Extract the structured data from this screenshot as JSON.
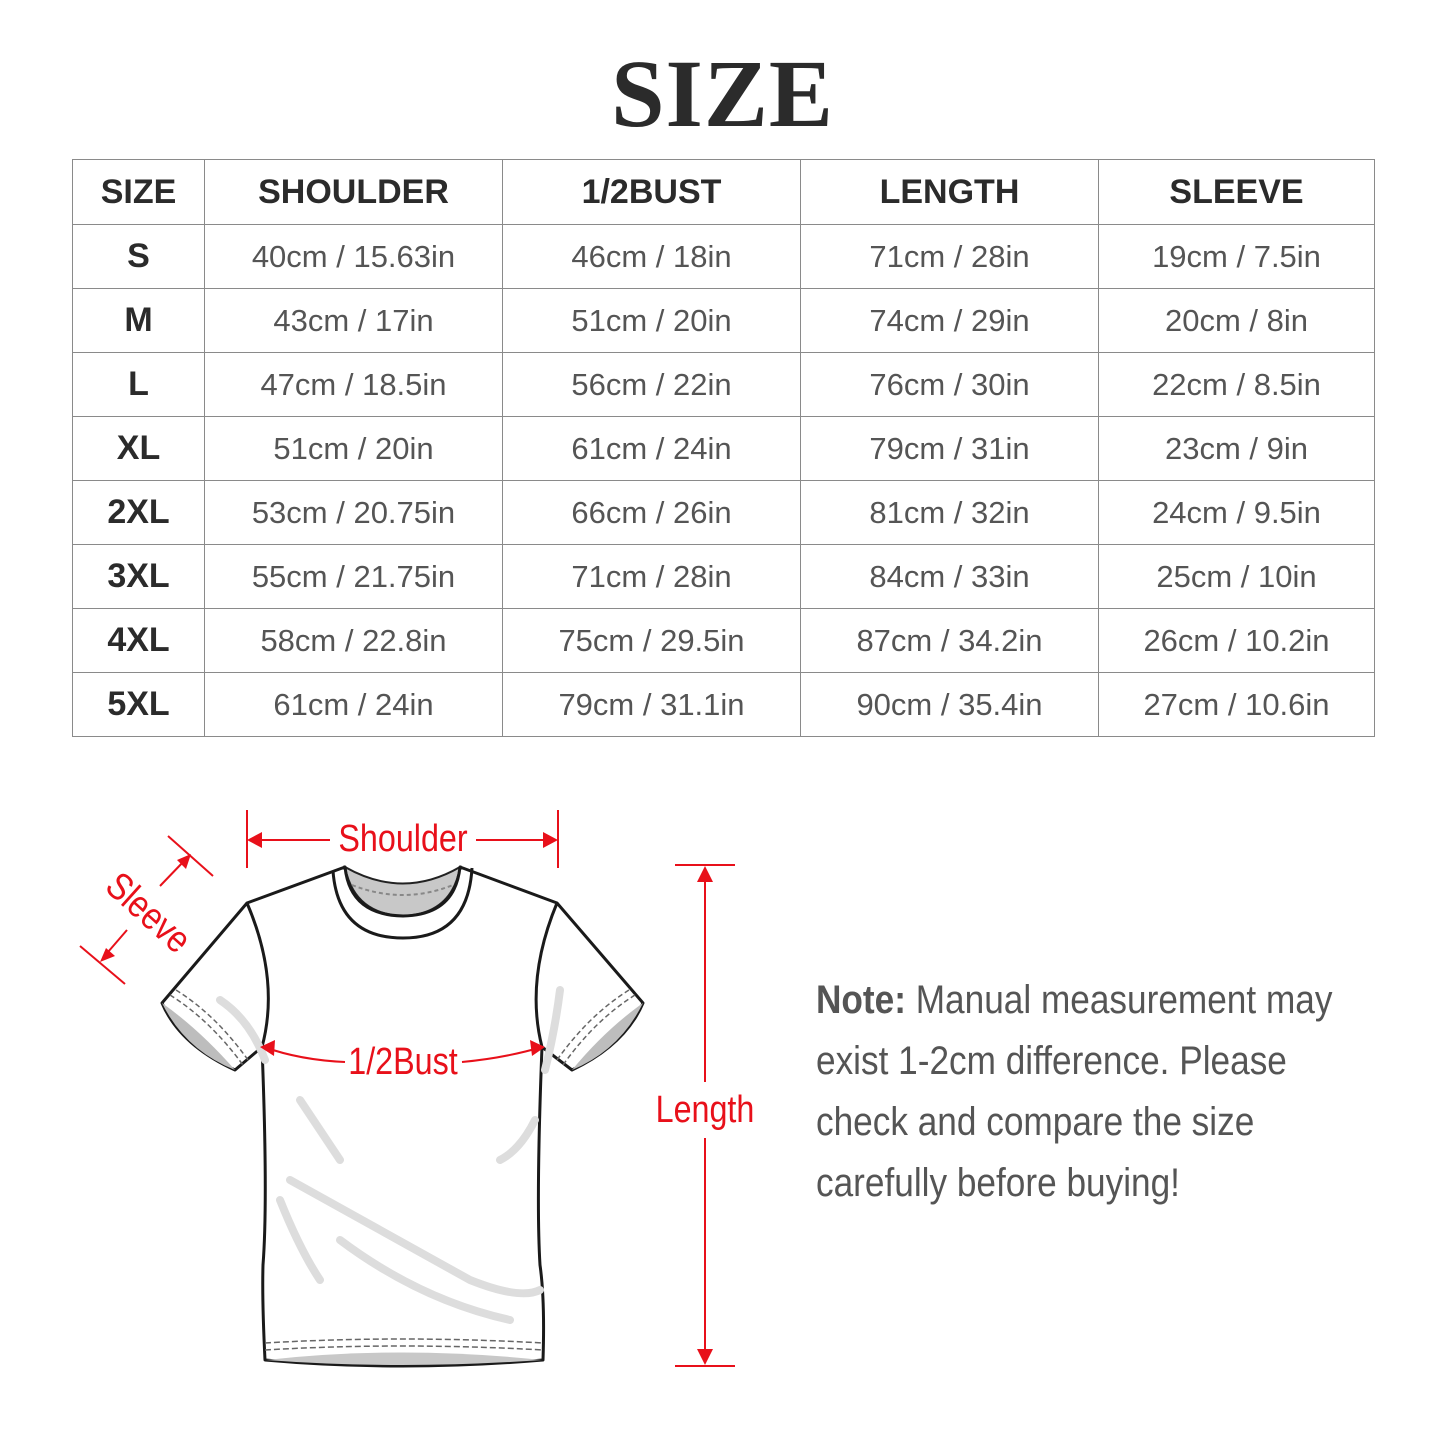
{
  "title": "SIZE",
  "table": {
    "headers": [
      "SIZE",
      "SHOULDER",
      "1/2BUST",
      "LENGTH",
      "SLEEVE"
    ],
    "rows": [
      [
        "S",
        "40cm / 15.63in",
        "46cm / 18in",
        "71cm / 28in",
        "19cm / 7.5in"
      ],
      [
        "M",
        "43cm / 17in",
        "51cm / 20in",
        "74cm / 29in",
        "20cm / 8in"
      ],
      [
        "L",
        "47cm / 18.5in",
        "56cm / 22in",
        "76cm / 30in",
        "22cm / 8.5in"
      ],
      [
        "XL",
        "51cm / 20in",
        "61cm / 24in",
        "79cm / 31in",
        "23cm / 9in"
      ],
      [
        "2XL",
        "53cm / 20.75in",
        "66cm / 26in",
        "81cm / 32in",
        "24cm / 9.5in"
      ],
      [
        "3XL",
        "55cm / 21.75in",
        "71cm / 28in",
        "84cm / 33in",
        "25cm / 10in"
      ],
      [
        "4XL",
        "58cm / 22.8in",
        "75cm / 29.5in",
        "87cm / 34.2in",
        "26cm / 10.2in"
      ],
      [
        "5XL",
        "61cm / 24in",
        "79cm / 31.1in",
        "90cm / 35.4in",
        "27cm / 10.6in"
      ]
    ]
  },
  "diagram": {
    "shoulder_label": "Shoulder",
    "sleeve_label": "Sleeve",
    "bust_label": "1/2Bust",
    "length_label": "Length",
    "accent_color": "#e8101a"
  },
  "note": {
    "label": "Note:",
    "lines": [
      " Manual measurement may",
      "exist 1-2cm difference. Please",
      "check and compare the size",
      "carefully before buying!"
    ]
  }
}
